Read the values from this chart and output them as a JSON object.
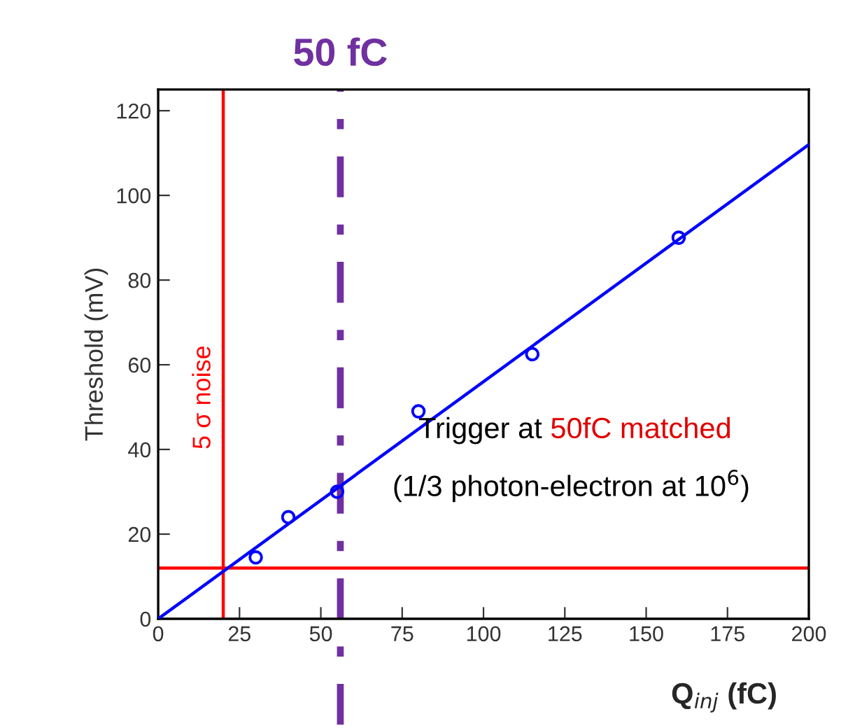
{
  "chart_data": {
    "type": "scatter",
    "xlabel": "Q$_{inj}$ (fC)",
    "ylabel": "Threshold (mV)",
    "xlim": [
      0,
      200
    ],
    "ylim": [
      0,
      125
    ],
    "xticks": [
      0,
      25,
      50,
      75,
      100,
      125,
      150,
      175,
      200
    ],
    "yticks": [
      0,
      20,
      40,
      60,
      80,
      100,
      120
    ],
    "grid": false,
    "marker": "circle",
    "series": [
      {
        "color": "#0000ff",
        "x": [
          30,
          40,
          55,
          80,
          115,
          160
        ],
        "values": [
          14.5,
          24,
          30,
          49,
          62.5,
          90
        ]
      },
      {
        "type": "line",
        "marker": "none",
        "color": "#0000ff",
        "x": [
          0,
          200
        ],
        "values": [
          0,
          112
        ]
      }
    ],
    "ref_lines": [
      {
        "axis": "x",
        "value": 20,
        "label": "5 σ noise",
        "color": "#ff0000",
        "line_style": "solid"
      },
      {
        "axis": "y",
        "value": 12,
        "color": "#ff0000",
        "line_style": "solid"
      },
      {
        "axis": "x",
        "value": 56,
        "label": "50 fC",
        "color": "#7030a0",
        "line_style": "dashdot"
      }
    ],
    "annotations": [
      "Trigger at ",
      "50fC matched",
      "(1/3 photon-electron at 10$^{6}$)"
    ]
  }
}
